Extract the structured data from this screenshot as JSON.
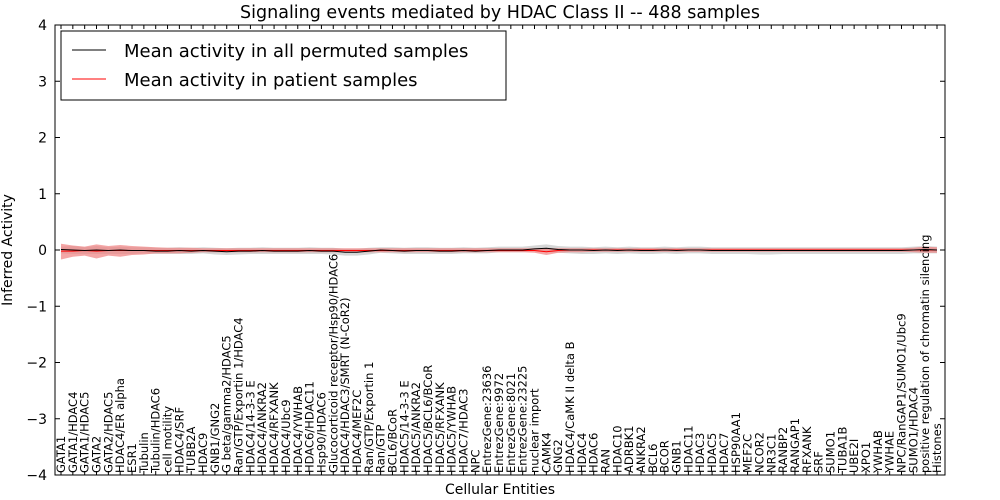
{
  "chart_data": {
    "type": "line",
    "title": "Signaling events mediated by HDAC Class II -- 488 samples",
    "xlabel": "Cellular Entities",
    "ylabel": "Inferred Activity",
    "ylim": [
      -4,
      4
    ],
    "yticks": [
      -4,
      -3,
      -2,
      -1,
      0,
      1,
      2,
      3,
      4
    ],
    "ytick_labels": [
      "−4",
      "−3",
      "−2",
      "−1",
      "0",
      "1",
      "2",
      "3",
      "4"
    ],
    "legend_position": "top-left",
    "colors": {
      "permuted": "#000000",
      "patient": "#ff0000",
      "permuted_band": "#c8c8c8",
      "patient_band": "#f08080"
    },
    "categories": [
      "GATA1",
      "GATA1/HDAC4",
      "GATA1/HDAC5",
      "GATA2",
      "GATA2/HDAC5",
      "HDAC4/ER alpha",
      "ESR1",
      "Tubulin",
      "Tubulin/HDAC6",
      "cell motility",
      "HDAC4/SRF",
      "TUBB2A",
      "HDAC9",
      "GNB1/GNG2",
      "G beta/gamma2/HDAC5",
      "Ran/GTP/Exportin 1/HDAC4",
      "HDAC4/14-3-3 E",
      "HDAC4/ANKRA2",
      "HDAC4/RFXANK",
      "HDAC4/Ubc9",
      "HDAC4/YWHAB",
      "HDAC6/HDAC11",
      "Hsp90/HDAC6",
      "Glucocorticoid receptor/Hsp90/HDAC6",
      "HDAC4/HDAC3/SMRT (N-CoR2)",
      "HDAC4/MEF2C",
      "Ran/GTP/Exportin 1",
      "Ran/GTP",
      "BCL6/BCoR",
      "HDAC5/14-3-3 E",
      "HDAC5/ANKRA2",
      "HDAC5/BCL6/BCoR",
      "HDAC5/RFXANK",
      "HDAC5/YWHAB",
      "HDAC7/HDAC3",
      "NPC",
      "EntrezGene:23636",
      "EntrezGene:9972",
      "EntrezGene:8021",
      "EntrezGene:23225",
      "nuclear import",
      "CAMK4",
      "GNG2",
      "HDAC4/CaMK II delta B",
      "HDAC4",
      "HDAC6",
      "RAN",
      "HDAC10",
      "ADRBK1",
      "ANKRA2",
      "BCL6",
      "BCOR",
      "GNB1",
      "HDAC11",
      "HDAC3",
      "HDAC5",
      "HDAC7",
      "HSP90AA1",
      "MEF2C",
      "NCOR2",
      "NR3C1",
      "RANBP2",
      "RANGAP1",
      "RFXANK",
      "SRF",
      "SUMO1",
      "TUBA1B",
      "UBE2I",
      "XPO1",
      "YWHAB",
      "YWHAE",
      "NPC/RanGAP1/SUMO1/Ubc9",
      "SUMO1/HDAC4",
      "positive regulation of chromatin silencing",
      "Histones"
    ],
    "series": [
      {
        "name": "Mean activity in all permuted samples",
        "values": [
          0.01,
          0.0,
          -0.01,
          0.0,
          -0.01,
          0.0,
          -0.01,
          -0.01,
          -0.02,
          -0.02,
          -0.01,
          -0.02,
          -0.01,
          -0.02,
          -0.03,
          -0.02,
          -0.02,
          -0.01,
          -0.02,
          -0.02,
          -0.02,
          -0.01,
          -0.02,
          -0.02,
          -0.04,
          -0.04,
          -0.02,
          0.0,
          -0.01,
          -0.02,
          -0.01,
          -0.01,
          -0.02,
          -0.02,
          -0.01,
          -0.02,
          -0.01,
          0.0,
          0.0,
          0.0,
          0.02,
          0.03,
          0.01,
          0.0,
          0.0,
          -0.01,
          0.0,
          -0.01,
          0.0,
          -0.01,
          -0.01,
          0.0,
          -0.01,
          0.0,
          0.0,
          -0.01,
          -0.01,
          -0.01,
          -0.01,
          -0.01,
          -0.01,
          -0.01,
          -0.01,
          -0.01,
          -0.01,
          -0.01,
          -0.01,
          -0.01,
          -0.01,
          -0.01,
          -0.01,
          -0.01,
          0.0,
          0.01,
          0.0
        ]
      },
      {
        "name": "Mean activity in patient samples",
        "values": [
          -0.02,
          -0.02,
          -0.01,
          -0.02,
          -0.01,
          -0.01,
          -0.01,
          -0.01,
          -0.01,
          -0.01,
          -0.01,
          -0.01,
          -0.01,
          -0.01,
          -0.01,
          -0.01,
          -0.01,
          -0.01,
          -0.01,
          -0.01,
          -0.01,
          -0.01,
          -0.01,
          -0.01,
          -0.01,
          -0.01,
          -0.01,
          -0.01,
          -0.01,
          -0.01,
          -0.01,
          -0.01,
          -0.01,
          -0.01,
          -0.01,
          -0.01,
          -0.01,
          -0.01,
          -0.01,
          -0.01,
          -0.01,
          -0.03,
          -0.01,
          0.0,
          0.0,
          0.0,
          0.0,
          0.0,
          0.0,
          0.0,
          0.0,
          0.0,
          0.0,
          0.0,
          0.0,
          0.0,
          0.0,
          0.0,
          0.0,
          0.0,
          0.0,
          0.0,
          0.0,
          0.0,
          0.0,
          0.0,
          0.0,
          0.0,
          0.0,
          0.0,
          0.0,
          0.0,
          0.0,
          0.0,
          0.0
        ]
      }
    ],
    "permuted_band": {
      "lower": [
        -0.06,
        -0.07,
        -0.07,
        -0.07,
        -0.07,
        -0.07,
        -0.07,
        -0.06,
        -0.07,
        -0.07,
        -0.07,
        -0.07,
        -0.06,
        -0.08,
        -0.09,
        -0.08,
        -0.07,
        -0.07,
        -0.07,
        -0.07,
        -0.07,
        -0.07,
        -0.07,
        -0.08,
        -0.1,
        -0.1,
        -0.08,
        -0.05,
        -0.06,
        -0.07,
        -0.07,
        -0.07,
        -0.07,
        -0.07,
        -0.06,
        -0.06,
        -0.06,
        -0.04,
        -0.04,
        -0.04,
        -0.02,
        -0.03,
        -0.05,
        -0.06,
        -0.07,
        -0.07,
        -0.06,
        -0.07,
        -0.06,
        -0.07,
        -0.07,
        -0.06,
        -0.07,
        -0.06,
        -0.06,
        -0.07,
        -0.07,
        -0.07,
        -0.07,
        -0.08,
        -0.08,
        -0.07,
        -0.07,
        -0.07,
        -0.07,
        -0.07,
        -0.07,
        -0.07,
        -0.07,
        -0.07,
        -0.07,
        -0.07,
        -0.06,
        -0.06,
        -0.06
      ],
      "upper": [
        0.06,
        0.07,
        0.05,
        0.07,
        0.05,
        0.06,
        0.05,
        0.05,
        0.04,
        0.04,
        0.05,
        0.04,
        0.05,
        0.04,
        0.03,
        0.04,
        0.04,
        0.05,
        0.04,
        0.04,
        0.04,
        0.05,
        0.04,
        0.04,
        0.02,
        0.02,
        0.04,
        0.05,
        0.05,
        0.04,
        0.05,
        0.05,
        0.04,
        0.04,
        0.05,
        0.04,
        0.05,
        0.06,
        0.06,
        0.06,
        0.08,
        0.1,
        0.07,
        0.06,
        0.06,
        0.05,
        0.06,
        0.05,
        0.06,
        0.05,
        0.05,
        0.06,
        0.05,
        0.06,
        0.06,
        0.05,
        0.05,
        0.05,
        0.05,
        0.05,
        0.05,
        0.05,
        0.05,
        0.05,
        0.05,
        0.05,
        0.05,
        0.05,
        0.05,
        0.05,
        0.05,
        0.05,
        0.06,
        0.07,
        0.06
      ]
    },
    "patient_band": {
      "lower": [
        -0.17,
        -0.12,
        -0.1,
        -0.15,
        -0.1,
        -0.12,
        -0.09,
        -0.08,
        -0.06,
        -0.06,
        -0.06,
        -0.05,
        -0.04,
        -0.04,
        -0.04,
        -0.04,
        -0.04,
        -0.04,
        -0.04,
        -0.04,
        -0.04,
        -0.04,
        -0.04,
        -0.04,
        -0.04,
        -0.04,
        -0.04,
        -0.04,
        -0.04,
        -0.04,
        -0.04,
        -0.04,
        -0.04,
        -0.04,
        -0.04,
        -0.04,
        -0.04,
        -0.04,
        -0.04,
        -0.04,
        -0.05,
        -0.09,
        -0.05,
        -0.04,
        -0.04,
        -0.03,
        -0.03,
        -0.03,
        -0.03,
        -0.03,
        -0.03,
        -0.03,
        -0.03,
        -0.03,
        -0.03,
        -0.03,
        -0.03,
        -0.03,
        -0.03,
        -0.03,
        -0.03,
        -0.03,
        -0.03,
        -0.03,
        -0.03,
        -0.03,
        -0.03,
        -0.03,
        -0.03,
        -0.03,
        -0.03,
        -0.03,
        -0.04,
        -0.05,
        -0.05
      ],
      "upper": [
        0.11,
        0.08,
        0.06,
        0.1,
        0.07,
        0.09,
        0.07,
        0.06,
        0.05,
        0.04,
        0.04,
        0.04,
        0.03,
        0.03,
        0.03,
        0.03,
        0.03,
        0.03,
        0.03,
        0.03,
        0.03,
        0.03,
        0.03,
        0.03,
        0.03,
        0.03,
        0.03,
        0.03,
        0.03,
        0.03,
        0.03,
        0.03,
        0.03,
        0.03,
        0.03,
        0.03,
        0.03,
        0.03,
        0.03,
        0.03,
        0.03,
        0.03,
        0.03,
        0.03,
        0.03,
        0.03,
        0.03,
        0.03,
        0.03,
        0.03,
        0.03,
        0.03,
        0.03,
        0.03,
        0.03,
        0.03,
        0.03,
        0.03,
        0.03,
        0.03,
        0.03,
        0.03,
        0.03,
        0.03,
        0.03,
        0.03,
        0.03,
        0.03,
        0.03,
        0.03,
        0.03,
        0.03,
        0.04,
        0.06,
        0.05
      ]
    }
  }
}
